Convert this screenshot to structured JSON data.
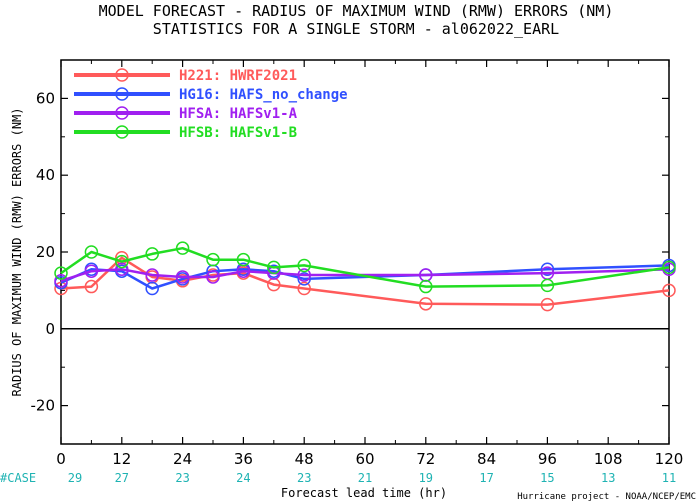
{
  "title_line1": "MODEL FORECAST - RADIUS OF MAXIMUM WIND (RMW) ERRORS (NM)",
  "title_line2": "STATISTICS FOR A SINGLE STORM - al062022_EARL",
  "credit": "Hurricane project - NOAA/NCEP/EMC",
  "case_label": "#CASE",
  "chart_data": {
    "type": "line",
    "xlabel": "Forecast lead time (hr)",
    "ylabel": "RADIUS OF MAXIMUM WIND (RMW) ERRORS (NM)",
    "xlim": [
      0,
      120
    ],
    "ylim": [
      -30,
      70
    ],
    "xticks": [
      0,
      12,
      24,
      36,
      48,
      60,
      72,
      84,
      96,
      108,
      120
    ],
    "yticks": [
      -20,
      0,
      20,
      40,
      60
    ],
    "grid": false,
    "legend_position": "top-left",
    "case_counts": [
      29,
      27,
      23,
      24,
      23,
      21,
      19,
      17,
      15,
      13,
      11
    ],
    "series": [
      {
        "name": "H221: HWRF2021",
        "color": "#ff5a5a",
        "x": [
          0,
          6,
          12,
          18,
          24,
          30,
          36,
          42,
          48,
          72,
          96,
          120
        ],
        "y": [
          10.5,
          11.0,
          18.5,
          13.5,
          12.5,
          14.0,
          14.5,
          11.5,
          10.5,
          6.5,
          6.3,
          10.0
        ]
      },
      {
        "name": "HG16: HAFS_no_change",
        "color": "#3050ff",
        "x": [
          0,
          6,
          12,
          18,
          24,
          30,
          36,
          42,
          48,
          72,
          96,
          120
        ],
        "y": [
          12.0,
          15.5,
          15.0,
          10.5,
          13.0,
          15.0,
          15.5,
          15.0,
          13.0,
          14.0,
          15.5,
          16.5
        ]
      },
      {
        "name": "HFSA: HAFSv1-A",
        "color": "#a020f0",
        "x": [
          0,
          6,
          12,
          18,
          24,
          30,
          36,
          42,
          48,
          72,
          96,
          120
        ],
        "y": [
          12.5,
          15.0,
          15.5,
          14.0,
          13.5,
          13.5,
          15.0,
          14.5,
          14.0,
          14.0,
          14.5,
          15.5
        ]
      },
      {
        "name": "HFSB: HAFSv1-B",
        "color": "#22dd22",
        "x": [
          0,
          6,
          12,
          18,
          24,
          30,
          36,
          42,
          48,
          72,
          96,
          120
        ],
        "y": [
          14.5,
          20.0,
          17.5,
          19.5,
          21.0,
          18.0,
          18.0,
          16.0,
          16.5,
          11.0,
          11.3,
          16.0
        ]
      }
    ]
  }
}
